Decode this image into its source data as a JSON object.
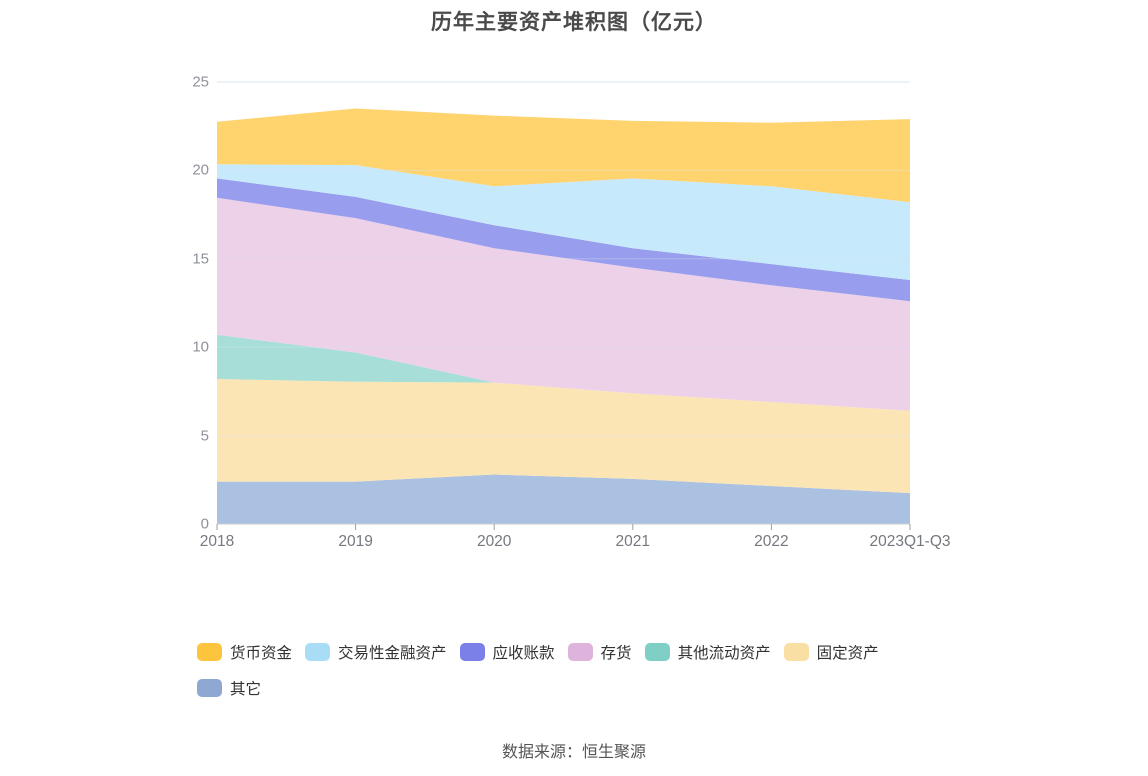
{
  "title": "历年主要资产堆积图（亿元）",
  "footer": "数据来源：恒生聚源",
  "colors": {
    "title_text": "#4a4a4a",
    "y_axis_label": "#8f9299",
    "x_axis_label": "#75787f",
    "legend_text": "#333333",
    "footer_text": "#555555",
    "grid_line": "#dbe3f0",
    "axis_line": "#c9cdd4"
  },
  "chart_data": {
    "type": "area",
    "stacked": true,
    "title": "历年主要资产堆积图（亿元）",
    "xlabel": "",
    "ylabel": "",
    "ylim": [
      0,
      25
    ],
    "yticks": [
      0,
      5,
      10,
      15,
      20,
      25
    ],
    "grid": true,
    "legend_position": "bottom",
    "categories": [
      "2018",
      "2019",
      "2020",
      "2021",
      "2022",
      "2023Q1-Q3"
    ],
    "series": [
      {
        "key": "others",
        "name": "其它",
        "fill": "#abc1e2",
        "legend_color": "#8fa8d3",
        "values": [
          2.4,
          2.4,
          2.8,
          2.55,
          2.15,
          1.75
        ]
      },
      {
        "key": "fixed-assets",
        "name": "固定资产",
        "fill": "#fce5b4",
        "legend_color": "#fadfa5",
        "values": [
          5.8,
          5.65,
          5.2,
          4.85,
          4.75,
          4.65
        ]
      },
      {
        "key": "other-current-assets",
        "name": "其他流动资产",
        "fill": "#a7dfd8",
        "legend_color": "#80cfc7",
        "values": [
          2.5,
          1.65,
          0.0,
          0.0,
          0.0,
          0.0
        ]
      },
      {
        "key": "inventory",
        "name": "存货",
        "fill": "#ecd1e9",
        "legend_color": "#dfb4dc",
        "values": [
          7.75,
          7.6,
          7.6,
          7.1,
          6.6,
          6.2
        ]
      },
      {
        "key": "accounts-receivable",
        "name": "应收账款",
        "fill": "#989ded",
        "legend_color": "#7b80e8",
        "values": [
          1.1,
          1.2,
          1.3,
          1.1,
          1.2,
          1.2
        ]
      },
      {
        "key": "trading-financial-assets",
        "name": "交易性金融资产",
        "fill": "#c6e9fb",
        "legend_color": "#a9ddf6",
        "values": [
          0.8,
          1.8,
          2.2,
          3.95,
          4.4,
          4.4
        ]
      },
      {
        "key": "monetary-funds",
        "name": "货币资金",
        "fill": "#ffd36e",
        "legend_color": "#fcc53d",
        "values": [
          2.4,
          3.2,
          4.0,
          3.25,
          3.6,
          4.7
        ]
      }
    ],
    "legend_rows": [
      [
        6,
        5,
        4,
        3,
        2,
        1
      ],
      [
        0
      ]
    ]
  }
}
